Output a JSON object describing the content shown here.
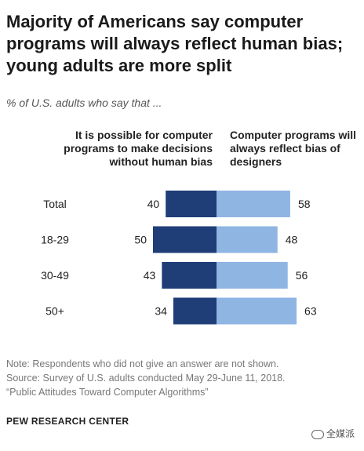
{
  "title": "Majority of Americans say computer programs will always reflect human bias; young adults are more split",
  "subtitle": "% of U.S. adults who say that ...",
  "columns": {
    "left": "It is possible for computer programs to make decisions without human bias",
    "right": "Computer programs will always reflect bias of designers"
  },
  "notes": {
    "note": "Note: Respondents who did not give an answer are not shown.",
    "source": "Source: Survey of U.S. adults conducted May 29-June 11, 2018.",
    "report": "“Public Attitudes Toward Computer Algorithms”",
    "brand": "PEW RESEARCH CENTER"
  },
  "watermark": "全媒派",
  "colors": {
    "left": "#1f3e78",
    "right": "#8fb5e3"
  },
  "chart_data": {
    "type": "bar",
    "orientation": "diverging-horizontal",
    "categories": [
      "Total",
      "18-29",
      "30-49",
      "50+"
    ],
    "series": [
      {
        "name": "It is possible for computer programs to make decisions without human bias",
        "values": [
          40,
          50,
          43,
          34
        ]
      },
      {
        "name": "Computer programs will always reflect bias of designers",
        "values": [
          58,
          48,
          56,
          63
        ]
      }
    ]
  }
}
